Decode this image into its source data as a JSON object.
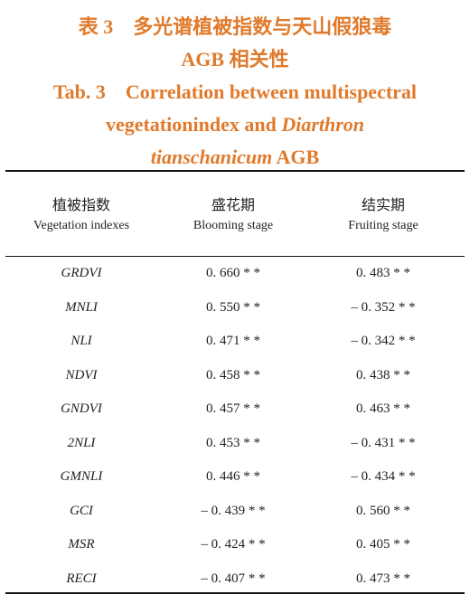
{
  "title": {
    "cn_lines": [
      "表 3　多光谱植被指数与天山假狼毒",
      "AGB 相关性"
    ],
    "en_lines": [
      [
        {
          "text": "Tab. 3　Correlation between multispectral",
          "italic": false
        }
      ],
      [
        {
          "text": "vegetationindex and ",
          "italic": false
        },
        {
          "text": "Diarthron",
          "italic": true
        }
      ],
      [
        {
          "text": "tianschanicum",
          "italic": true
        },
        {
          "text": " AGB",
          "italic": false
        }
      ]
    ]
  },
  "table": {
    "header": [
      {
        "cn": "植被指数",
        "en": "Vegetation indexes"
      },
      {
        "cn": "盛花期",
        "en": "Blooming stage"
      },
      {
        "cn": "结实期",
        "en": "Fruiting stage"
      }
    ],
    "rows": [
      [
        "GRDVI",
        "0. 660 * *",
        "0. 483 * *"
      ],
      [
        "MNLI",
        "0. 550 * *",
        "– 0. 352 * *"
      ],
      [
        "NLI",
        "0. 471 * *",
        "– 0. 342 * *"
      ],
      [
        "NDVI",
        "0. 458 * *",
        "0. 438 * *"
      ],
      [
        "GNDVI",
        "0. 457 * *",
        "0. 463 * *"
      ],
      [
        "2NLI",
        "0. 453 * *",
        "– 0. 431 * *"
      ],
      [
        "GMNLI",
        "0. 446 * *",
        "– 0. 434 * *"
      ],
      [
        "GCI",
        "– 0. 439 * *",
        "0. 560 * *"
      ],
      [
        "MSR",
        "– 0. 424 * *",
        "0. 405 * *"
      ],
      [
        "RECI",
        "– 0. 407 * *",
        "0. 473 * *"
      ]
    ]
  }
}
